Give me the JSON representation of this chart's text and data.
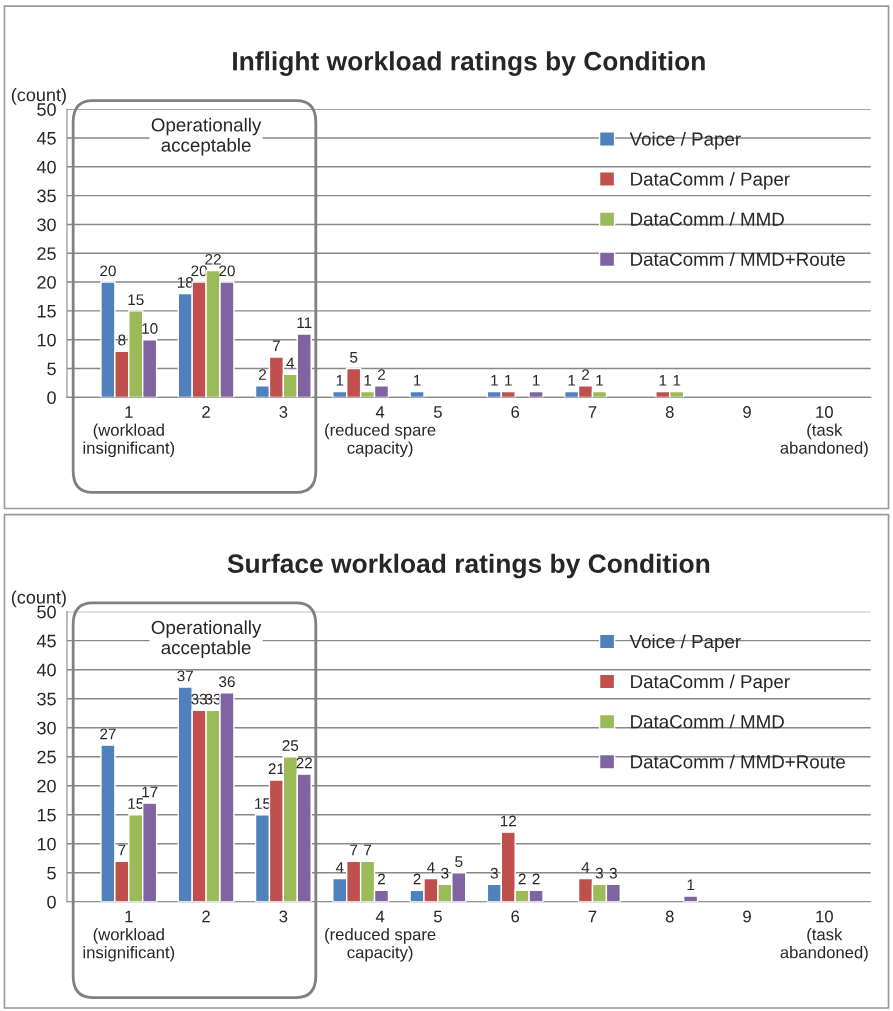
{
  "chart_data": [
    {
      "type": "bar",
      "title": "Inflight workload ratings by Condition",
      "ylabel": "(count)",
      "categories": [
        "1\n(workload\ninsignificant)",
        "2",
        "3",
        "4\n(reduced spare\ncapacity)",
        "5",
        "6",
        "7",
        "8",
        "9",
        "10\n(task\nabandoned)"
      ],
      "series": [
        {
          "name": "Voice / Paper",
          "color": "#4f81bd",
          "values": [
            20,
            18,
            2,
            1,
            1,
            1,
            1,
            null,
            null,
            null
          ],
          "value_labels": [
            "20",
            "18",
            "2",
            "1",
            "1",
            "1",
            "1",
            null,
            null,
            null
          ]
        },
        {
          "name": "DataComm / Paper",
          "color": "#c0504d",
          "values": [
            8,
            20,
            7,
            5,
            null,
            1,
            2,
            1,
            null,
            null
          ],
          "value_labels": [
            "8",
            "20",
            "7",
            "5",
            null,
            "1",
            "2",
            "1",
            null,
            null
          ]
        },
        {
          "name": "DataComm / MMD",
          "color": "#9bbb59",
          "values": [
            15,
            22,
            4,
            1,
            null,
            null,
            1,
            1,
            null,
            null
          ],
          "value_labels": [
            "15",
            "22",
            "4",
            "1",
            null,
            null,
            "1",
            "1",
            null,
            null
          ]
        },
        {
          "name": "DataComm / MMD+Route",
          "color": "#8064a2",
          "values": [
            10,
            20,
            11,
            2,
            null,
            1,
            null,
            null,
            null,
            null
          ],
          "value_labels": [
            "10",
            "20",
            "11",
            "2",
            null,
            "1",
            null,
            null,
            null,
            null
          ]
        }
      ],
      "ylim": [
        0,
        50
      ],
      "yticks": [
        0,
        5,
        10,
        15,
        20,
        25,
        30,
        35,
        40,
        45,
        50
      ],
      "grid": "y",
      "legend": "top right",
      "annotations": [
        "Operationally\nacceptable"
      ]
    },
    {
      "type": "bar",
      "title": "Surface workload ratings by Condition",
      "ylabel": "(count)",
      "categories": [
        "1\n(workload\ninsignificant)",
        "2",
        "3",
        "4\n(reduced spare\ncapacity)",
        "5",
        "6",
        "7",
        "8",
        "9",
        "10\n(task\nabandoned)"
      ],
      "series": [
        {
          "name": "Voice / Paper",
          "color": "#4f81bd",
          "values": [
            27,
            37,
            15,
            4,
            2,
            3,
            null,
            null,
            null,
            null
          ],
          "value_labels": [
            "27",
            "37",
            "15",
            "4",
            "2",
            "3",
            null,
            null,
            null,
            null
          ]
        },
        {
          "name": "DataComm / Paper",
          "color": "#c0504d",
          "values": [
            7,
            33,
            21,
            7,
            4,
            12,
            4,
            null,
            null,
            null
          ],
          "value_labels": [
            "7",
            "33",
            "21",
            "7",
            "4",
            "12",
            "4",
            null,
            null,
            null
          ]
        },
        {
          "name": "DataComm / MMD",
          "color": "#9bbb59",
          "values": [
            15,
            33,
            25,
            7,
            3,
            2,
            3,
            null,
            null,
            null
          ],
          "value_labels": [
            "15",
            "33",
            "25",
            "7",
            "3",
            "2",
            "3",
            null,
            null,
            null
          ]
        },
        {
          "name": "DataComm / MMD+Route",
          "color": "#8064a2",
          "values": [
            17,
            36,
            22,
            2,
            5,
            2,
            3,
            1,
            null,
            null
          ],
          "value_labels": [
            "17",
            "36",
            "22",
            "2",
            "5",
            "2",
            "3",
            "1",
            null,
            null
          ]
        }
      ],
      "ylim": [
        0,
        50
      ],
      "yticks": [
        0,
        5,
        10,
        15,
        20,
        25,
        30,
        35,
        40,
        45,
        50
      ],
      "grid": "y",
      "legend": "top right",
      "annotations": [
        "Operationally\nacceptable"
      ]
    }
  ]
}
